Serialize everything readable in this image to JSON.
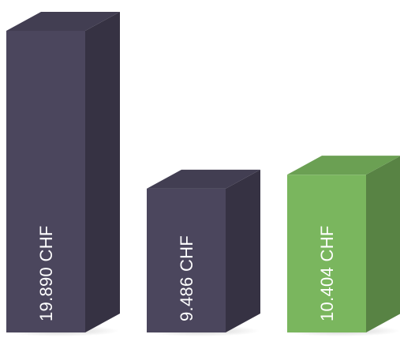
{
  "chart_data": {
    "type": "bar",
    "style": "3d-columns",
    "title": "",
    "xlabel": "",
    "ylabel": "",
    "ylim": [
      0,
      20500
    ],
    "grid": false,
    "legend": "none",
    "bars": [
      {
        "value": 19890,
        "label": "19.890 CHF",
        "color": "#4b465d"
      },
      {
        "value": 9486,
        "label": "9.486 CHF",
        "color": "#4b465d"
      },
      {
        "value": 10404,
        "label": "10.404 CHF",
        "color": "#7ab65e"
      }
    ]
  }
}
